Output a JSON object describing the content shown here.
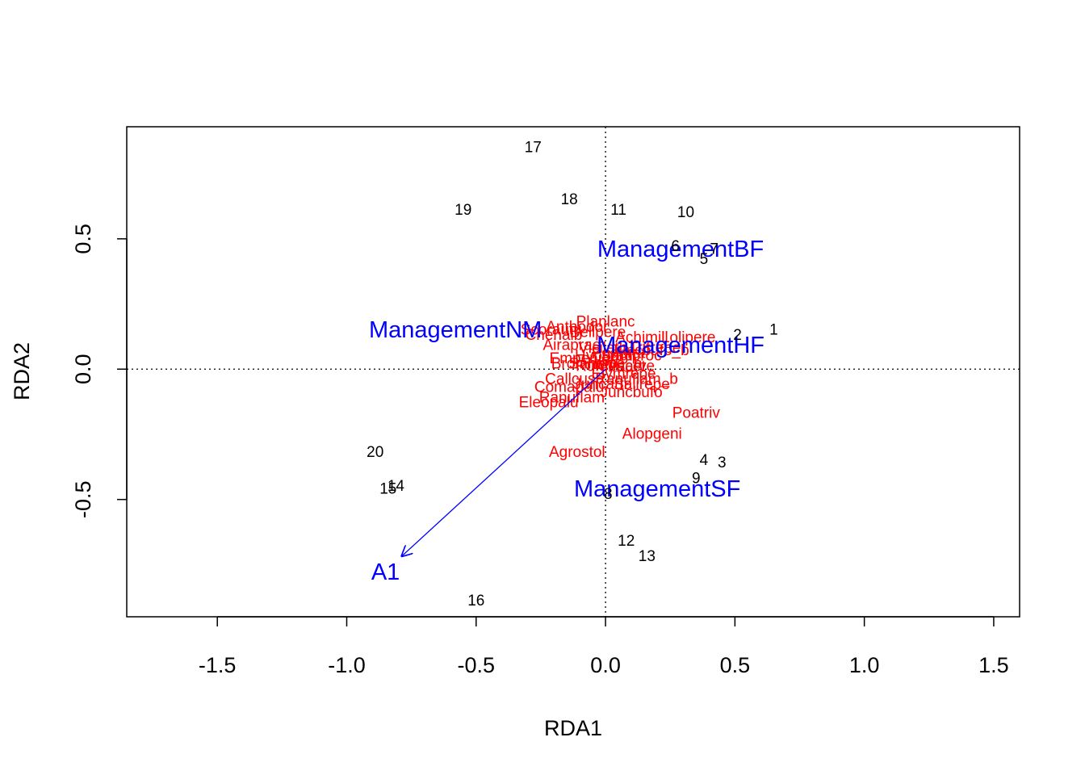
{
  "chart_data": {
    "type": "scatter",
    "title": "",
    "xlabel": "RDA1",
    "ylabel": "RDA2",
    "xlim": [
      -1.85,
      1.6
    ],
    "ylim": [
      -0.95,
      0.93
    ],
    "x_ticks": [
      -1.5,
      -1.0,
      -0.5,
      0.0,
      0.5,
      1.0,
      1.5
    ],
    "x_tick_labels": [
      "-1.5",
      "-1.0",
      "-0.5",
      "0.0",
      "0.5",
      "1.0",
      "1.5"
    ],
    "y_ticks": [
      -0.5,
      0.0,
      0.5
    ],
    "y_tick_labels": [
      "-0.5",
      "0.0",
      "0.5"
    ],
    "reference_lines": {
      "x": 0,
      "y": 0,
      "style": "dotted"
    },
    "colors": {
      "sites": "#000000",
      "species": "#ff0000",
      "constraints": "#0000ff"
    },
    "sites": [
      {
        "label": "1",
        "x": 0.65,
        "y": 0.15
      },
      {
        "label": "2",
        "x": 0.51,
        "y": 0.13
      },
      {
        "label": "3",
        "x": 0.45,
        "y": -0.36
      },
      {
        "label": "4",
        "x": 0.38,
        "y": -0.35
      },
      {
        "label": "5",
        "x": 0.38,
        "y": 0.42
      },
      {
        "label": "6",
        "x": 0.27,
        "y": 0.47
      },
      {
        "label": "7",
        "x": 0.42,
        "y": 0.46
      },
      {
        "label": "8",
        "x": 0.01,
        "y": -0.48
      },
      {
        "label": "9",
        "x": 0.35,
        "y": -0.42
      },
      {
        "label": "10",
        "x": 0.31,
        "y": 0.6
      },
      {
        "label": "11",
        "x": 0.05,
        "y": 0.61
      },
      {
        "label": "12",
        "x": 0.08,
        "y": -0.66
      },
      {
        "label": "13",
        "x": 0.16,
        "y": -0.72
      },
      {
        "label": "14",
        "x": -0.81,
        "y": -0.45
      },
      {
        "label": "15",
        "x": -0.84,
        "y": -0.46
      },
      {
        "label": "16",
        "x": -0.5,
        "y": -0.89
      },
      {
        "label": "17",
        "x": -0.28,
        "y": 0.85
      },
      {
        "label": "18",
        "x": -0.14,
        "y": 0.65
      },
      {
        "label": "19",
        "x": -0.55,
        "y": 0.61
      },
      {
        "label": "20",
        "x": -0.89,
        "y": -0.32
      }
    ],
    "species": [
      {
        "label": "Planlanc",
        "x": 0.0,
        "y": 0.18
      },
      {
        "label": "Anthodor",
        "x": -0.11,
        "y": 0.16
      },
      {
        "label": "Scorautu",
        "x": -0.21,
        "y": 0.15
      },
      {
        "label": "Bellpere",
        "x": -0.03,
        "y": 0.14
      },
      {
        "label": "Chenalb",
        "x": -0.2,
        "y": 0.13
      },
      {
        "label": "Achimill",
        "x": 0.14,
        "y": 0.12
      },
      {
        "label": "Lolipere",
        "x": 0.32,
        "y": 0.12
      },
      {
        "label": "Trifrepe",
        "x": 0.19,
        "y": 0.08
      },
      {
        "label": "Airaprae",
        "x": -0.13,
        "y": 0.09
      },
      {
        "label": "Vicilath",
        "x": -0.01,
        "y": 0.08
      },
      {
        "label": "Hyporadi",
        "x": 0.0,
        "y": 0.05
      },
      {
        "label": "Poaprat",
        "x": 0.05,
        "y": 0.06
      },
      {
        "label": "Sagiproc",
        "x": 0.1,
        "y": 0.05
      },
      {
        "label": "Juncbufo_b",
        "x": 0.17,
        "y": 0.07
      },
      {
        "label": "Empenigr",
        "x": -0.09,
        "y": 0.04
      },
      {
        "label": "Rumeacet",
        "x": 0.02,
        "y": 0.01
      },
      {
        "label": "Bromhord",
        "x": -0.08,
        "y": 0.02
      },
      {
        "label": "Salirepe_b",
        "x": 0.0,
        "y": 0.02
      },
      {
        "label": "Cirsarve",
        "x": 0.08,
        "y": 0.01
      },
      {
        "label": "Elymrepe",
        "x": 0.07,
        "y": -0.02
      },
      {
        "label": "Ranuflam_b",
        "x": 0.12,
        "y": -0.04
      },
      {
        "label": "Callcusp",
        "x": -0.12,
        "y": -0.04
      },
      {
        "label": "Comapalu",
        "x": -0.14,
        "y": -0.07
      },
      {
        "label": "Ranuflam",
        "x": -0.13,
        "y": -0.11
      },
      {
        "label": "Juncarti",
        "x": -0.02,
        "y": -0.06
      },
      {
        "label": "Salirepe",
        "x": 0.14,
        "y": -0.06
      },
      {
        "label": "Juncbufo",
        "x": 0.1,
        "y": -0.09
      },
      {
        "label": "Eleopalu",
        "x": -0.22,
        "y": -0.13
      },
      {
        "label": "Poatriv",
        "x": 0.35,
        "y": -0.17
      },
      {
        "label": "Alopgeni",
        "x": 0.18,
        "y": -0.25
      },
      {
        "label": "Agrostol",
        "x": -0.11,
        "y": -0.32
      }
    ],
    "centroids": [
      {
        "label": "ManagementBF",
        "x": 0.29,
        "y": 0.46
      },
      {
        "label": "ManagementNM",
        "x": -0.58,
        "y": 0.15
      },
      {
        "label": "ManagementHF",
        "x": 0.29,
        "y": 0.09
      },
      {
        "label": "ManagementSF",
        "x": 0.2,
        "y": -0.46
      }
    ],
    "biplot_arrows": [
      {
        "label": "A1",
        "x_end": -0.79,
        "y_end": -0.72,
        "label_x": -0.85,
        "label_y": -0.78
      }
    ]
  }
}
